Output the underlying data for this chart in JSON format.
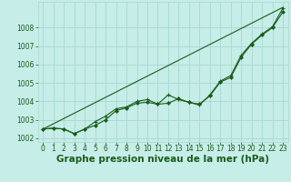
{
  "title": "Graphe pression niveau de la mer (hPa)",
  "bg_color": "#c6ede8",
  "grid_color": "#a8d8d0",
  "line_color": "#1a5c1a",
  "xlim": [
    -0.5,
    23.5
  ],
  "ylim": [
    1001.8,
    1009.4
  ],
  "xticks": [
    0,
    1,
    2,
    3,
    4,
    5,
    6,
    7,
    8,
    9,
    10,
    11,
    12,
    13,
    14,
    15,
    16,
    17,
    18,
    19,
    20,
    21,
    22,
    23
  ],
  "yticks": [
    1002,
    1003,
    1004,
    1005,
    1006,
    1007,
    1008
  ],
  "series1": [
    1002.5,
    1002.55,
    1002.5,
    1002.25,
    1002.5,
    1002.7,
    1003.0,
    1003.5,
    1003.65,
    1003.9,
    1003.95,
    1003.85,
    1003.9,
    1004.15,
    1003.95,
    1003.85,
    1004.3,
    1005.05,
    1005.3,
    1006.4,
    1007.1,
    1007.6,
    1008.0,
    1008.85
  ],
  "series2": [
    1002.5,
    1002.55,
    1002.5,
    1002.25,
    1002.5,
    1002.9,
    1003.2,
    1003.6,
    1003.7,
    1004.0,
    1004.1,
    1003.85,
    1004.35,
    1004.1,
    1003.95,
    1003.8,
    1004.35,
    1005.1,
    1005.4,
    1006.5,
    1007.15,
    1007.65,
    1008.05,
    1009.05
  ],
  "series3_x": [
    0,
    23
  ],
  "series3_y": [
    1002.5,
    1009.1
  ],
  "title_fontsize": 7.5,
  "tick_fontsize": 5.5
}
